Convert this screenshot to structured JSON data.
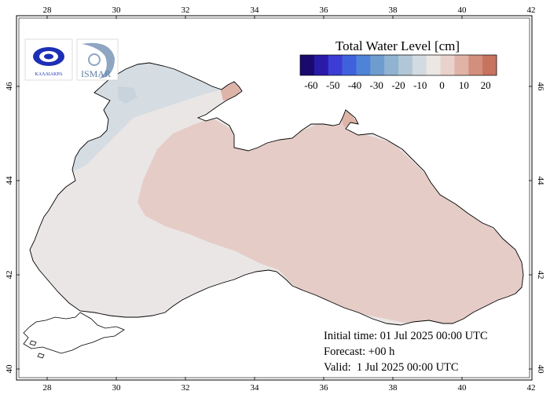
{
  "map": {
    "longitude_ticks": [
      "28",
      "30",
      "32",
      "34",
      "36",
      "38",
      "40",
      "42"
    ],
    "latitude_ticks": [
      "40",
      "42",
      "44",
      "46"
    ],
    "extent": {
      "lon_min": 27.2,
      "lon_max": 42.0,
      "lat_min": 40.0,
      "lat_max": 47.4
    }
  },
  "logos": [
    {
      "name": "emblem-logo",
      "text": "ΚΑΛΛΙΑΚΡΑ"
    },
    {
      "name": "ismar-logo",
      "text": "ISMAR"
    }
  ],
  "legend": {
    "title": "Total Water Level [cm]",
    "tick_labels": [
      "-60",
      "-50",
      "-40",
      "-30",
      "-20",
      "-10",
      "0",
      "10",
      "20"
    ],
    "colors": [
      "#1a0a6e",
      "#2a1aa8",
      "#3b3dd4",
      "#3f62dc",
      "#4f83d8",
      "#6f9ccf",
      "#8fb3d0",
      "#b1c6d6",
      "#d3dbe2",
      "#ece7e3",
      "#e9d2cc",
      "#dfb3a6",
      "#d28f7e",
      "#c7735f"
    ],
    "range": [
      -65,
      25
    ],
    "step": 5
  },
  "info": {
    "initial_time": "Initial time: 01 Jul 2025 00:00 UTC",
    "forecast": "Forecast: +00 h",
    "valid": "Valid:  1 Jul 2025 00:00 UTC"
  },
  "field_colors": {
    "background_sea": "#ebe6e6",
    "positive_anomaly": "#e5ccc7",
    "negative_anomaly_north": "#d5dde3",
    "strong_positive": "#deb3a8"
  }
}
